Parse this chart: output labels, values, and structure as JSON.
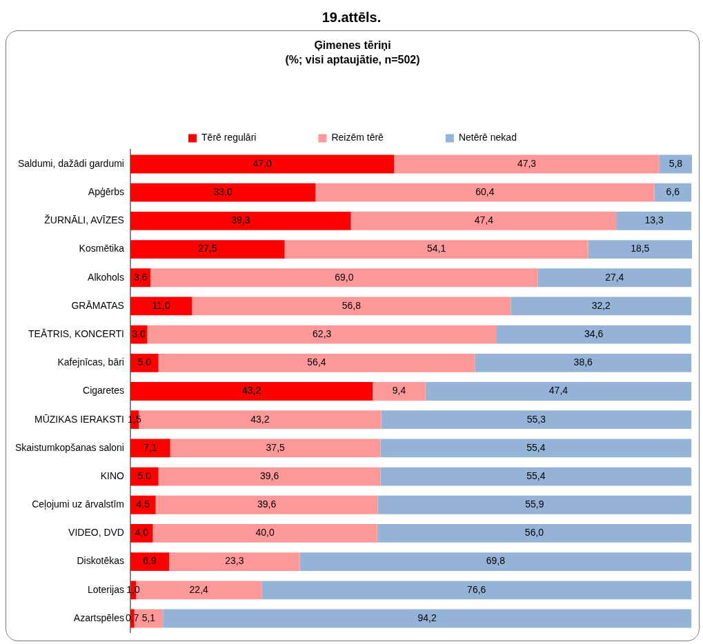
{
  "chart_data": {
    "type": "bar",
    "orientation": "horizontal",
    "stacked": true,
    "title": "19.attēls.",
    "subtitle": "Ģimenes tēriņi",
    "annotations": [
      "(%; visi aptaujātie, n=502)"
    ],
    "categories": [
      "Saldumi, dažādi gardumi",
      "Apģērbs",
      "ŽURNĀLI, AVĪZES",
      "Kosmētika",
      "Alkohols",
      "GRĀMATAS",
      "TEĀTRIS, KONCERTI",
      "Kafejnīcas, bāri",
      "Cigaretes",
      "MŪZIKAS IERAKSTI",
      "Skaistumkopšanas saloni",
      "KINO",
      "Ceļojumi uz ārvalstīm",
      "VIDEO, DVD",
      "Diskotēkas",
      "Loterijas",
      "Azartspēles"
    ],
    "series": [
      {
        "name": "Tērē regulāri",
        "color": "#ff0000",
        "values": [
          47.0,
          33.0,
          39.3,
          27.5,
          3.6,
          11.0,
          3.0,
          5.0,
          43.2,
          1.5,
          7.1,
          5.0,
          4.5,
          4.0,
          6.9,
          1.0,
          0.7
        ],
        "value_labels": [
          "47,0",
          "33,0",
          "39,3",
          "27,5",
          "3,6",
          "11,0",
          "3,0",
          "5,0",
          "43,2",
          "1,5",
          "7,1",
          "5,0",
          "4,5",
          "4,0",
          "6,9",
          "1,0",
          "0,7"
        ]
      },
      {
        "name": "Reizēm tērē",
        "color": "#ff9999",
        "values": [
          47.3,
          60.4,
          47.4,
          54.1,
          69.0,
          56.8,
          62.3,
          56.4,
          9.4,
          43.2,
          37.5,
          39.6,
          39.6,
          40.0,
          23.3,
          22.4,
          5.1
        ],
        "value_labels": [
          "47,3",
          "60,4",
          "47,4",
          "54,1",
          "69,0",
          "56,8",
          "62,3",
          "56,4",
          "9,4",
          "43,2",
          "37,5",
          "39,6",
          "39,6",
          "40,0",
          "23,3",
          "22,4",
          "5,1"
        ]
      },
      {
        "name": "Netērē nekad",
        "color": "#95b3d7",
        "values": [
          5.8,
          6.6,
          13.3,
          18.5,
          27.4,
          32.2,
          34.6,
          38.6,
          47.4,
          55.3,
          55.4,
          55.4,
          55.9,
          56.0,
          69.8,
          76.6,
          94.2
        ],
        "value_labels": [
          "5,8",
          "6,6",
          "13,3",
          "18,5",
          "27,4",
          "32,2",
          "34,6",
          "38,6",
          "47,4",
          "55,3",
          "55,4",
          "55,4",
          "55,9",
          "56,0",
          "69,8",
          "76,6",
          "94,2"
        ]
      }
    ],
    "xlim": [
      0,
      100.1
    ],
    "tick_labels": "y",
    "grid": false,
    "legend": "top"
  }
}
